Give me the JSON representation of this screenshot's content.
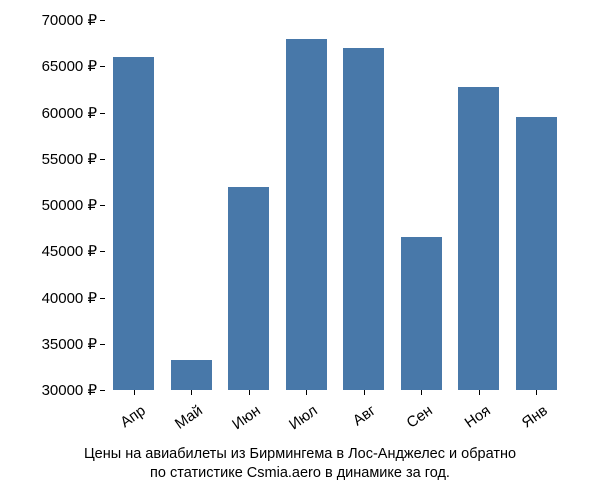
{
  "chart": {
    "type": "bar",
    "background_color": "#ffffff",
    "bar_color": "#4878a9",
    "text_color": "#000000",
    "tick_color": "#000000",
    "label_fontsize": 15,
    "caption_fontsize": 14.5,
    "bar_width_ratio": 0.72,
    "x_label_rotation_deg": -35,
    "ylim": [
      30000,
      70000
    ],
    "ytick_step": 5000,
    "yticks": [
      30000,
      35000,
      40000,
      45000,
      50000,
      55000,
      60000,
      65000,
      70000
    ],
    "ytick_labels": [
      "30000 ₽",
      "35000 ₽",
      "40000 ₽",
      "45000 ₽",
      "50000 ₽",
      "55000 ₽",
      "60000 ₽",
      "65000 ₽",
      "70000 ₽"
    ],
    "categories": [
      "Апр",
      "Май",
      "Июн",
      "Июл",
      "Авг",
      "Сен",
      "Ноя",
      "Янв"
    ],
    "values": [
      66000,
      33200,
      52000,
      68000,
      67000,
      46500,
      62800,
      59500
    ],
    "caption_line1": "Цены на авиабилеты из Бирмингема в Лос-Анджелес и обратно",
    "caption_line2": "по статистике Csmia.aero в динамике за год."
  }
}
